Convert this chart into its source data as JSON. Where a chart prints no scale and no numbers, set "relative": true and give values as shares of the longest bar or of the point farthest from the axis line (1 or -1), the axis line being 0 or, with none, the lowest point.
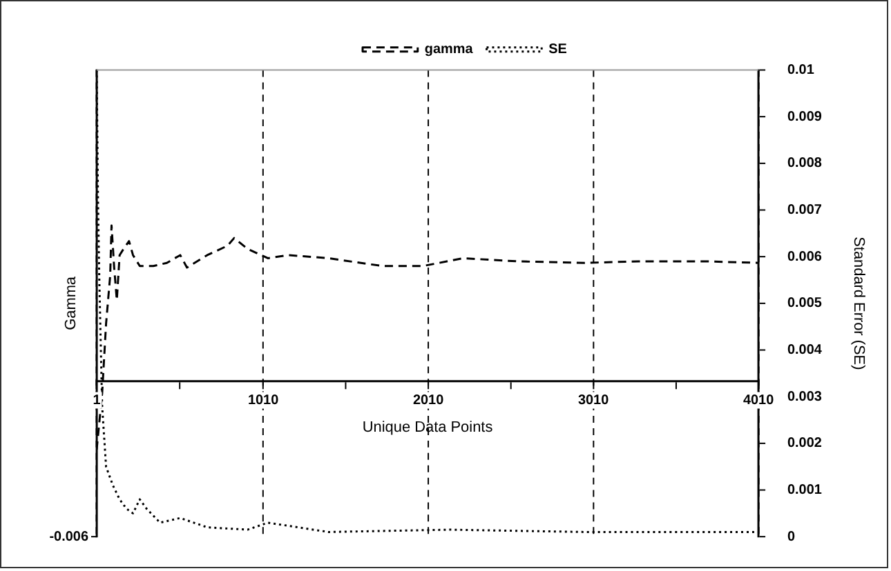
{
  "chart_data": {
    "type": "line",
    "xlabel": "Unique Data Points",
    "ylabel": "Gamma",
    "y2label": "Standard Error (SE)",
    "relative": true,
    "annotations": [
      "-0.006"
    ],
    "xlim": [
      1,
      4010
    ],
    "xticks": [
      1,
      {
        "value": 505,
        "label": null
      },
      1010,
      {
        "value": 1510,
        "label": null
      },
      2010,
      {
        "value": 2510,
        "label": null
      },
      3010,
      {
        "value": 3510,
        "label": null
      },
      4010
    ],
    "y2lim": [
      0,
      0.01
    ],
    "y2ticks": [
      0,
      0.001,
      0.002,
      0.003,
      0.004,
      0.005,
      0.006,
      0.007,
      0.008,
      0.009,
      0.01
    ],
    "grid": "x",
    "legend": "top",
    "marker": "none",
    "series": [
      {
        "name": "gamma",
        "color": "#000000",
        "line_style": "dashed",
        "x": [
          1,
          34,
          58,
          83,
          91,
          107,
          123,
          140,
          164,
          197,
          221,
          262,
          344,
          426,
          507,
          548,
          671,
          793,
          834,
          915,
          1038,
          1160,
          1405,
          1732,
          1977,
          2222,
          2549,
          2957,
          3283,
          3692,
          4010
        ],
        "values": [
          -0.44,
          -0.08,
          0.37,
          0.68,
          1,
          0.73,
          0.52,
          0.81,
          0.85,
          0.9,
          0.81,
          0.74,
          0.74,
          0.76,
          0.81,
          0.73,
          0.81,
          0.87,
          0.92,
          0.85,
          0.79,
          0.81,
          0.79,
          0.74,
          0.74,
          0.79,
          0.77,
          0.76,
          0.77,
          0.77,
          0.76
        ]
      },
      {
        "name": "SE",
        "color": "#000000",
        "line_style": "dotted",
        "axis": "y2",
        "x": [
          1,
          9,
          17,
          34,
          58,
          99,
          140,
          181,
          221,
          262,
          303,
          385,
          507,
          671,
          915,
          1038,
          1405,
          2140,
          2957,
          4010
        ],
        "values": [
          0.01,
          0.0072,
          0.0055,
          0.0028,
          0.0015,
          0.0011,
          0.0008,
          0.0006,
          0.0005,
          0.0008,
          0.0006,
          0.0003,
          0.0004,
          0.0002,
          0.00015,
          0.0003,
          0.0001,
          0.00015,
          0.0001,
          0.0001
        ]
      }
    ]
  }
}
